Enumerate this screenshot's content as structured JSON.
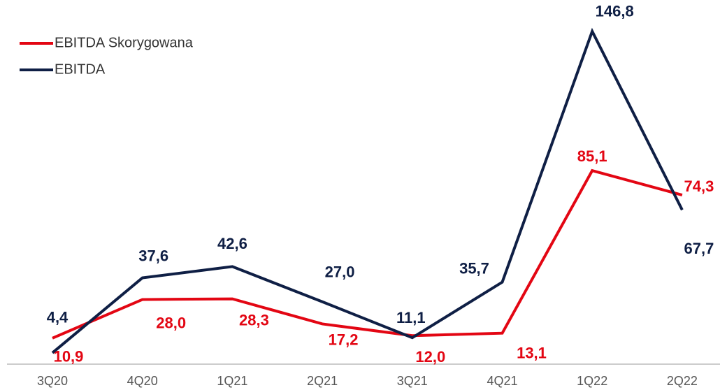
{
  "chart_data": {
    "type": "line",
    "categories": [
      "3Q20",
      "4Q20",
      "1Q21",
      "2Q21",
      "3Q21",
      "4Q21",
      "1Q22",
      "2Q22"
    ],
    "series": [
      {
        "name": "EBITDA Skorygowana",
        "color": "#e30613",
        "values": [
          10.9,
          28.0,
          28.3,
          17.2,
          12.0,
          13.1,
          85.1,
          74.3
        ],
        "value_labels": [
          "10,9",
          "28,0",
          "28,3",
          "17,2",
          "12,0",
          "13,1",
          "85,1",
          "74,3"
        ]
      },
      {
        "name": "EBITDA",
        "color": "#0f1f45",
        "values": [
          4.4,
          37.6,
          42.6,
          27.0,
          11.1,
          35.7,
          146.8,
          67.7
        ],
        "value_labels": [
          "4,4",
          "37,6",
          "42,6",
          "27,0",
          "11,1",
          "35,7",
          "146,8",
          "67,7"
        ]
      }
    ]
  }
}
